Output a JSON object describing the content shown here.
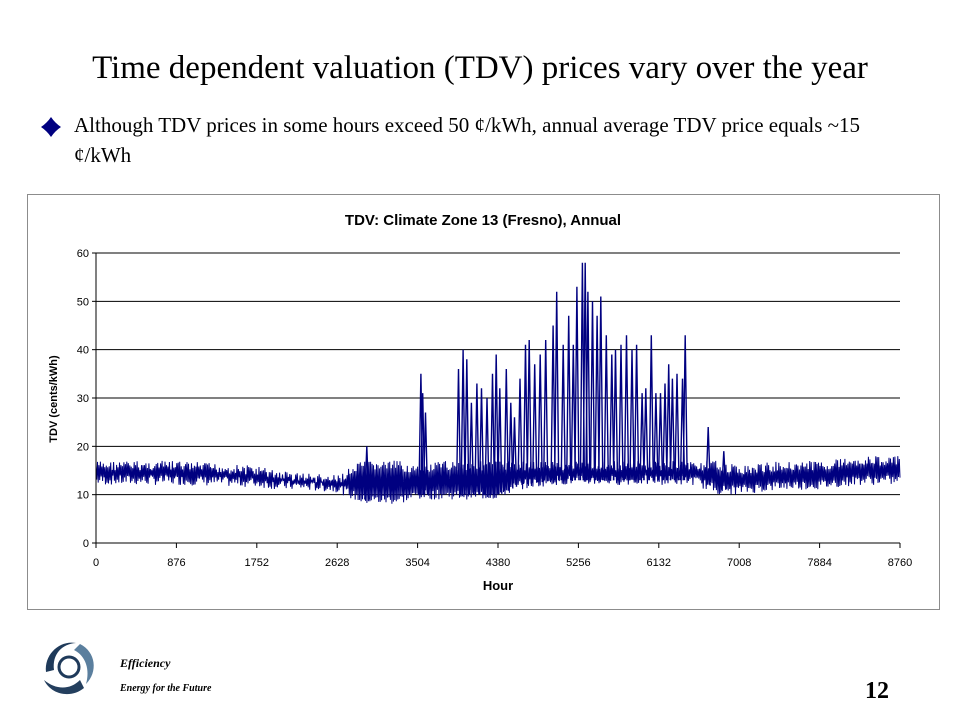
{
  "slide": {
    "title": "Time dependent valuation (TDV) prices vary over the year",
    "bullet": "Although TDV prices in some hours exceed 50 ¢/kWh, annual average TDV price equals ~15 ¢/kWh",
    "footer_line1": "Efficiency",
    "footer_line2": "Energy for the Future",
    "page_number": "12"
  },
  "colors": {
    "series": "#000080",
    "bullet": "#000080",
    "gridline": "#000000"
  },
  "chart_data": {
    "type": "line",
    "title": "TDV: Climate Zone 13 (Fresno), Annual",
    "xlabel": "Hour",
    "ylabel": "TDV (cents/kWh)",
    "xlim": [
      0,
      8760
    ],
    "ylim": [
      0,
      60
    ],
    "xticks": [
      0,
      876,
      1752,
      2628,
      3504,
      4380,
      5256,
      6132,
      7008,
      7884,
      8760
    ],
    "yticks": [
      0,
      10,
      20,
      30,
      40,
      50,
      60
    ],
    "grid": "horizontal",
    "legend": "none",
    "series": [
      {
        "baseline_envelope": {
          "x": [
            0,
            876,
            1752,
            2000,
            2628,
            2900,
            3300,
            3504,
            3800,
            4100,
            4380,
            4600,
            5000,
            5256,
            5600,
            6132,
            6500,
            6800,
            7008,
            7500,
            7884,
            8300,
            8760
          ],
          "low": [
            12,
            12,
            11.5,
            11,
            10.5,
            8,
            8,
            9,
            9,
            9,
            9,
            11,
            12,
            12,
            12,
            12,
            12,
            10,
            10,
            11,
            11,
            12,
            12
          ],
          "high": [
            17,
            17,
            16,
            15,
            14,
            17,
            17,
            16,
            17,
            17,
            17,
            17,
            17,
            17,
            17,
            17,
            17,
            17,
            16,
            17,
            17,
            18,
            18
          ]
        },
        "spikes": {
          "x": [
            2950,
            3540,
            3560,
            3590,
            3950,
            4000,
            4040,
            4090,
            4150,
            4200,
            4260,
            4320,
            4360,
            4400,
            4470,
            4520,
            4560,
            4620,
            4680,
            4720,
            4780,
            4840,
            4900,
            4980,
            5020,
            5090,
            5150,
            5200,
            5240,
            5300,
            5330,
            5360,
            5410,
            5460,
            5500,
            5560,
            5620,
            5660,
            5720,
            5780,
            5840,
            5890,
            5950,
            5990,
            6050,
            6100,
            6150,
            6200,
            6240,
            6280,
            6330,
            6390,
            6420,
            6670,
            6840
          ],
          "y": [
            20,
            35,
            31,
            27,
            36,
            40,
            38,
            29,
            33,
            32,
            30,
            35,
            39,
            32,
            36,
            29,
            26,
            34,
            41,
            42,
            37,
            39,
            42,
            45,
            52,
            41,
            47,
            41,
            53,
            58,
            58,
            52,
            50,
            47,
            51,
            43,
            39,
            40,
            41,
            43,
            40,
            41,
            31,
            32,
            43,
            31,
            31,
            33,
            37,
            34,
            35,
            34,
            43,
            24,
            19
          ]
        }
      }
    ]
  }
}
